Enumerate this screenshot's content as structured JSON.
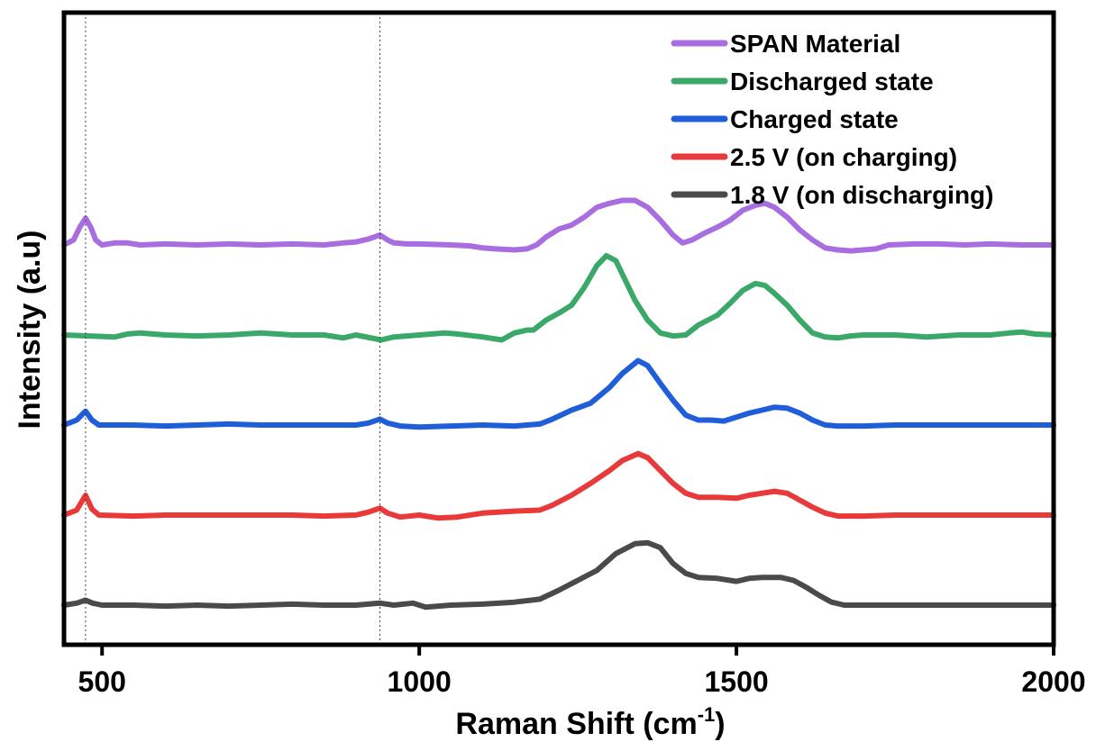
{
  "chart_data": {
    "type": "line",
    "xlabel": "Raman Shift (cm",
    "xlabel_sup": "-1",
    "xlabel_end": ")",
    "ylabel": "Intensity (a.u)",
    "xlim": [
      440,
      2000
    ],
    "x_ticks": [
      500,
      1000,
      1500,
      2000
    ],
    "y_ticks_shown": false,
    "grid": false,
    "legend_position": "top-right",
    "reference_lines_x": [
      474,
      938
    ],
    "series": [
      {
        "name": "SPAN Material",
        "color": "#a86ee0",
        "offset": 4,
        "points": [
          [
            440,
            0.0
          ],
          [
            455,
            0.05
          ],
          [
            465,
            0.18
          ],
          [
            474,
            0.27
          ],
          [
            482,
            0.18
          ],
          [
            490,
            0.05
          ],
          [
            500,
            0.0
          ],
          [
            520,
            0.02
          ],
          [
            540,
            0.02
          ],
          [
            560,
            0.0
          ],
          [
            600,
            0.01
          ],
          [
            650,
            0.0
          ],
          [
            700,
            0.01
          ],
          [
            750,
            0.0
          ],
          [
            800,
            0.01
          ],
          [
            850,
            0.0
          ],
          [
            880,
            0.02
          ],
          [
            900,
            0.03
          ],
          [
            920,
            0.06
          ],
          [
            938,
            0.1
          ],
          [
            950,
            0.05
          ],
          [
            960,
            0.02
          ],
          [
            980,
            0.01
          ],
          [
            1000,
            0.01
          ],
          [
            1050,
            0.0
          ],
          [
            1080,
            -0.01
          ],
          [
            1100,
            -0.03
          ],
          [
            1120,
            -0.04
          ],
          [
            1150,
            -0.05
          ],
          [
            1170,
            -0.04
          ],
          [
            1185,
            0.0
          ],
          [
            1200,
            0.08
          ],
          [
            1220,
            0.16
          ],
          [
            1240,
            0.2
          ],
          [
            1260,
            0.28
          ],
          [
            1280,
            0.38
          ],
          [
            1300,
            0.42
          ],
          [
            1320,
            0.45
          ],
          [
            1340,
            0.45
          ],
          [
            1360,
            0.38
          ],
          [
            1380,
            0.25
          ],
          [
            1400,
            0.1
          ],
          [
            1415,
            0.02
          ],
          [
            1430,
            0.05
          ],
          [
            1450,
            0.12
          ],
          [
            1470,
            0.18
          ],
          [
            1490,
            0.25
          ],
          [
            1510,
            0.35
          ],
          [
            1530,
            0.4
          ],
          [
            1545,
            0.42
          ],
          [
            1560,
            0.38
          ],
          [
            1580,
            0.28
          ],
          [
            1600,
            0.15
          ],
          [
            1620,
            0.05
          ],
          [
            1640,
            -0.03
          ],
          [
            1660,
            -0.05
          ],
          [
            1680,
            -0.06
          ],
          [
            1700,
            -0.05
          ],
          [
            1720,
            -0.04
          ],
          [
            1740,
            0.0
          ],
          [
            1780,
            0.01
          ],
          [
            1820,
            0.01
          ],
          [
            1860,
            0.0
          ],
          [
            1900,
            0.01
          ],
          [
            1950,
            0.0
          ],
          [
            2000,
            0.0
          ]
        ]
      },
      {
        "name": "Discharged state",
        "color": "#3aa868",
        "offset": 3,
        "points": [
          [
            440,
            0.0
          ],
          [
            480,
            -0.01
          ],
          [
            520,
            -0.02
          ],
          [
            540,
            0.01
          ],
          [
            560,
            0.02
          ],
          [
            600,
            0.0
          ],
          [
            650,
            -0.01
          ],
          [
            700,
            0.0
          ],
          [
            750,
            0.02
          ],
          [
            800,
            0.0
          ],
          [
            850,
            0.0
          ],
          [
            880,
            -0.03
          ],
          [
            900,
            0.0
          ],
          [
            940,
            -0.05
          ],
          [
            960,
            -0.02
          ],
          [
            1000,
            0.0
          ],
          [
            1040,
            0.02
          ],
          [
            1060,
            0.01
          ],
          [
            1100,
            -0.02
          ],
          [
            1130,
            -0.05
          ],
          [
            1150,
            0.02
          ],
          [
            1170,
            0.05
          ],
          [
            1180,
            0.05
          ],
          [
            1200,
            0.15
          ],
          [
            1220,
            0.22
          ],
          [
            1240,
            0.3
          ],
          [
            1260,
            0.48
          ],
          [
            1280,
            0.7
          ],
          [
            1295,
            0.8
          ],
          [
            1310,
            0.75
          ],
          [
            1325,
            0.55
          ],
          [
            1340,
            0.35
          ],
          [
            1360,
            0.15
          ],
          [
            1380,
            0.02
          ],
          [
            1400,
            -0.01
          ],
          [
            1420,
            0.0
          ],
          [
            1440,
            0.1
          ],
          [
            1470,
            0.2
          ],
          [
            1490,
            0.32
          ],
          [
            1510,
            0.45
          ],
          [
            1530,
            0.52
          ],
          [
            1545,
            0.5
          ],
          [
            1560,
            0.42
          ],
          [
            1580,
            0.3
          ],
          [
            1600,
            0.15
          ],
          [
            1620,
            0.02
          ],
          [
            1640,
            -0.02
          ],
          [
            1660,
            -0.03
          ],
          [
            1680,
            -0.01
          ],
          [
            1700,
            0.0
          ],
          [
            1750,
            0.0
          ],
          [
            1800,
            -0.02
          ],
          [
            1850,
            0.0
          ],
          [
            1900,
            0.0
          ],
          [
            1930,
            0.02
          ],
          [
            1950,
            0.03
          ],
          [
            1970,
            0.01
          ],
          [
            2000,
            0.0
          ]
        ]
      },
      {
        "name": "Charged state",
        "color": "#1f5ed8",
        "offset": 2,
        "points": [
          [
            440,
            0.0
          ],
          [
            460,
            0.05
          ],
          [
            474,
            0.14
          ],
          [
            484,
            0.05
          ],
          [
            495,
            0.0
          ],
          [
            550,
            0.0
          ],
          [
            600,
            -0.01
          ],
          [
            650,
            0.0
          ],
          [
            700,
            0.01
          ],
          [
            750,
            0.0
          ],
          [
            800,
            0.0
          ],
          [
            850,
            0.0
          ],
          [
            900,
            0.0
          ],
          [
            920,
            0.02
          ],
          [
            938,
            0.06
          ],
          [
            950,
            0.02
          ],
          [
            970,
            -0.01
          ],
          [
            1000,
            -0.02
          ],
          [
            1050,
            -0.01
          ],
          [
            1100,
            0.0
          ],
          [
            1150,
            -0.01
          ],
          [
            1190,
            0.01
          ],
          [
            1210,
            0.06
          ],
          [
            1240,
            0.15
          ],
          [
            1270,
            0.22
          ],
          [
            1300,
            0.38
          ],
          [
            1320,
            0.52
          ],
          [
            1345,
            0.65
          ],
          [
            1360,
            0.6
          ],
          [
            1380,
            0.42
          ],
          [
            1400,
            0.25
          ],
          [
            1420,
            0.1
          ],
          [
            1440,
            0.05
          ],
          [
            1460,
            0.05
          ],
          [
            1480,
            0.04
          ],
          [
            1500,
            0.08
          ],
          [
            1520,
            0.12
          ],
          [
            1540,
            0.15
          ],
          [
            1560,
            0.18
          ],
          [
            1580,
            0.17
          ],
          [
            1600,
            0.12
          ],
          [
            1620,
            0.05
          ],
          [
            1640,
            0.0
          ],
          [
            1660,
            -0.01
          ],
          [
            1700,
            -0.01
          ],
          [
            1750,
            0.0
          ],
          [
            1800,
            0.0
          ],
          [
            1850,
            0.0
          ],
          [
            1900,
            0.0
          ],
          [
            1950,
            0.0
          ],
          [
            2000,
            0.0
          ]
        ]
      },
      {
        "name": "2.5 V (on charging)",
        "color": "#e83a3a",
        "offset": 1,
        "points": [
          [
            440,
            0.0
          ],
          [
            460,
            0.05
          ],
          [
            474,
            0.2
          ],
          [
            484,
            0.06
          ],
          [
            495,
            0.0
          ],
          [
            550,
            -0.01
          ],
          [
            600,
            0.0
          ],
          [
            650,
            0.0
          ],
          [
            700,
            0.0
          ],
          [
            750,
            0.0
          ],
          [
            800,
            0.0
          ],
          [
            850,
            -0.01
          ],
          [
            900,
            0.0
          ],
          [
            920,
            0.03
          ],
          [
            938,
            0.07
          ],
          [
            950,
            0.02
          ],
          [
            970,
            -0.02
          ],
          [
            1000,
            0.0
          ],
          [
            1030,
            -0.03
          ],
          [
            1060,
            -0.02
          ],
          [
            1100,
            0.02
          ],
          [
            1150,
            0.04
          ],
          [
            1190,
            0.05
          ],
          [
            1210,
            0.1
          ],
          [
            1240,
            0.2
          ],
          [
            1270,
            0.32
          ],
          [
            1300,
            0.45
          ],
          [
            1320,
            0.55
          ],
          [
            1345,
            0.62
          ],
          [
            1360,
            0.58
          ],
          [
            1380,
            0.45
          ],
          [
            1400,
            0.32
          ],
          [
            1420,
            0.22
          ],
          [
            1440,
            0.18
          ],
          [
            1470,
            0.18
          ],
          [
            1500,
            0.17
          ],
          [
            1520,
            0.2
          ],
          [
            1540,
            0.22
          ],
          [
            1560,
            0.24
          ],
          [
            1580,
            0.22
          ],
          [
            1600,
            0.15
          ],
          [
            1620,
            0.08
          ],
          [
            1640,
            0.02
          ],
          [
            1660,
            -0.01
          ],
          [
            1700,
            -0.01
          ],
          [
            1750,
            0.0
          ],
          [
            1800,
            0.0
          ],
          [
            1850,
            0.0
          ],
          [
            1900,
            0.0
          ],
          [
            1950,
            0.0
          ],
          [
            2000,
            0.0
          ]
        ]
      },
      {
        "name": "1.8 V (on discharging)",
        "color": "#4a4a4a",
        "offset": 0,
        "points": [
          [
            440,
            0.0
          ],
          [
            460,
            0.02
          ],
          [
            474,
            0.05
          ],
          [
            485,
            0.02
          ],
          [
            500,
            0.0
          ],
          [
            550,
            0.0
          ],
          [
            600,
            -0.01
          ],
          [
            650,
            0.0
          ],
          [
            700,
            -0.01
          ],
          [
            750,
            0.0
          ],
          [
            800,
            0.01
          ],
          [
            850,
            0.0
          ],
          [
            900,
            0.0
          ],
          [
            938,
            0.02
          ],
          [
            960,
            0.0
          ],
          [
            990,
            0.02
          ],
          [
            1010,
            -0.02
          ],
          [
            1050,
            0.0
          ],
          [
            1100,
            0.01
          ],
          [
            1150,
            0.03
          ],
          [
            1190,
            0.06
          ],
          [
            1220,
            0.15
          ],
          [
            1250,
            0.25
          ],
          [
            1280,
            0.35
          ],
          [
            1310,
            0.52
          ],
          [
            1340,
            0.62
          ],
          [
            1360,
            0.63
          ],
          [
            1380,
            0.58
          ],
          [
            1400,
            0.42
          ],
          [
            1420,
            0.32
          ],
          [
            1440,
            0.28
          ],
          [
            1470,
            0.27
          ],
          [
            1500,
            0.24
          ],
          [
            1520,
            0.27
          ],
          [
            1540,
            0.28
          ],
          [
            1570,
            0.28
          ],
          [
            1590,
            0.25
          ],
          [
            1610,
            0.18
          ],
          [
            1630,
            0.1
          ],
          [
            1650,
            0.03
          ],
          [
            1670,
            0.0
          ],
          [
            1700,
            0.0
          ],
          [
            1750,
            0.0
          ],
          [
            1800,
            0.0
          ],
          [
            1850,
            0.0
          ],
          [
            1900,
            0.0
          ],
          [
            1950,
            0.0
          ],
          [
            2000,
            0.0
          ]
        ]
      }
    ]
  }
}
